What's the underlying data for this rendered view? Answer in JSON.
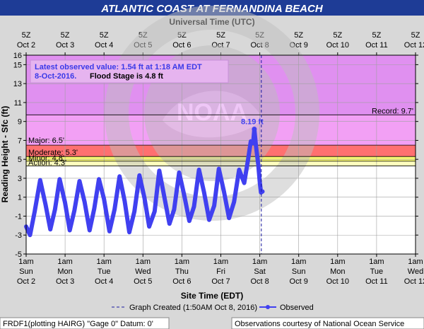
{
  "header": {
    "title": "ATLANTIC COAST AT FERNANDINA BEACH",
    "top_axis_title": "Universal Time (UTC)"
  },
  "info_box": {
    "line1": "Latest observed value: 1.54 ft at 1:18 AM EDT",
    "line2_date": "8-Oct-2016.",
    "line2_flood": "Flood Stage is 4.8 ft"
  },
  "footer": {
    "graph_created": "Graph Created (1:50AM Oct 8, 2016)",
    "observed": "Observed",
    "left": "FRDF1(plotting HAIRG) \"Gage 0\" Datum: 0'",
    "right": "Observations courtesy of National Ocean Service"
  },
  "colors": {
    "record_zone": "#e090f0",
    "major_zone": "#f2a0f5",
    "moderate_zone": "#ff7070",
    "minor_zone": "#f8f870",
    "action_zone": "#ffffbe",
    "series": "#4040f0",
    "title_bar": "#1e3c96",
    "info_text": "#3a3ae8"
  },
  "chart_data": {
    "type": "line",
    "ylabel": "Reading Height - Sfc (ft)",
    "xlabel": "Site Time (EDT)",
    "ylim": [
      -5,
      16
    ],
    "yticks": [
      -5,
      -3,
      -1,
      1,
      3,
      5,
      7,
      9,
      11,
      13,
      15,
      16
    ],
    "grid": true,
    "x_range_days": [
      "Oct 2 1am",
      "Oct 12 1am"
    ],
    "top_ticks": [
      {
        "hour": "5Z",
        "date": "Oct 2"
      },
      {
        "hour": "5Z",
        "date": "Oct 3"
      },
      {
        "hour": "5Z",
        "date": "Oct 4"
      },
      {
        "hour": "5Z",
        "date": "Oct 5"
      },
      {
        "hour": "5Z",
        "date": "Oct 6"
      },
      {
        "hour": "5Z",
        "date": "Oct 7"
      },
      {
        "hour": "5Z",
        "date": "Oct 8"
      },
      {
        "hour": "5Z",
        "date": "Oct 9"
      },
      {
        "hour": "5Z",
        "date": "Oct 10"
      },
      {
        "hour": "5Z",
        "date": "Oct 11"
      },
      {
        "hour": "5Z",
        "date": "Oct 12"
      }
    ],
    "bottom_ticks": [
      {
        "time": "1am",
        "day": "Sun",
        "date": "Oct 2"
      },
      {
        "time": "1am",
        "day": "Mon",
        "date": "Oct 3"
      },
      {
        "time": "1am",
        "day": "Tue",
        "date": "Oct 4"
      },
      {
        "time": "1am",
        "day": "Wed",
        "date": "Oct 5"
      },
      {
        "time": "1am",
        "day": "Thu",
        "date": "Oct 6"
      },
      {
        "time": "1am",
        "day": "Fri",
        "date": "Oct 7"
      },
      {
        "time": "1am",
        "day": "Sat",
        "date": "Oct 8"
      },
      {
        "time": "1am",
        "day": "Sun",
        "date": "Oct 9"
      },
      {
        "time": "1am",
        "day": "Mon",
        "date": "Oct 10"
      },
      {
        "time": "1am",
        "day": "Tue",
        "date": "Oct 11"
      },
      {
        "time": "1am",
        "day": "Wed",
        "date": "Oct 12"
      }
    ],
    "flood_categories": [
      {
        "name": "Record",
        "label": "Record: 9.7'",
        "value": 9.7
      },
      {
        "name": "Major",
        "label": "Major: 6.5'",
        "value": 6.5
      },
      {
        "name": "Moderate",
        "label": "Moderate: 5.3'",
        "value": 5.3
      },
      {
        "name": "Minor",
        "label": "Minor: 4.8'",
        "value": 4.8
      },
      {
        "name": "Action",
        "label": "Action: 4.3'",
        "value": 4.3
      }
    ],
    "peak_annotation": {
      "label": "8.19 ft",
      "value": 8.19,
      "day": 5.86
    },
    "graph_created_day": 6.04,
    "series": [
      {
        "name": "Observed",
        "points_day_ft": [
          [
            0.0,
            -2.1
          ],
          [
            0.1,
            -3.0
          ],
          [
            0.22,
            -0.5
          ],
          [
            0.36,
            2.8
          ],
          [
            0.5,
            0.2
          ],
          [
            0.62,
            -2.4
          ],
          [
            0.74,
            -0.3
          ],
          [
            0.86,
            2.9
          ],
          [
            1.0,
            0.4
          ],
          [
            1.12,
            -2.5
          ],
          [
            1.24,
            -0.4
          ],
          [
            1.37,
            2.7
          ],
          [
            1.5,
            0.5
          ],
          [
            1.63,
            -2.5
          ],
          [
            1.75,
            -0.2
          ],
          [
            1.87,
            2.9
          ],
          [
            2.0,
            0.8
          ],
          [
            2.14,
            -2.6
          ],
          [
            2.27,
            -0.3
          ],
          [
            2.4,
            3.2
          ],
          [
            2.53,
            0.6
          ],
          [
            2.65,
            -2.7
          ],
          [
            2.78,
            -0.5
          ],
          [
            2.91,
            3.3
          ],
          [
            3.04,
            0.9
          ],
          [
            3.16,
            -2.1
          ],
          [
            3.3,
            -0.5
          ],
          [
            3.42,
            3.8
          ],
          [
            3.55,
            1.0
          ],
          [
            3.68,
            -1.8
          ],
          [
            3.8,
            -0.3
          ],
          [
            3.93,
            3.6
          ],
          [
            4.06,
            1.2
          ],
          [
            4.19,
            -1.5
          ],
          [
            4.31,
            0.0
          ],
          [
            4.44,
            3.9
          ],
          [
            4.57,
            1.5
          ],
          [
            4.7,
            -1.4
          ],
          [
            4.83,
            0.1
          ],
          [
            4.95,
            4.0
          ],
          [
            5.08,
            1.6
          ],
          [
            5.21,
            -1.2
          ],
          [
            5.34,
            0.5
          ],
          [
            5.47,
            3.9
          ],
          [
            5.6,
            2.5
          ],
          [
            5.7,
            5.0
          ],
          [
            5.77,
            6.9
          ],
          [
            5.83,
            6.7
          ],
          [
            5.86,
            8.19
          ],
          [
            5.9,
            6.5
          ],
          [
            5.96,
            4.5
          ],
          [
            6.0,
            2.6
          ],
          [
            6.03,
            1.5
          ],
          [
            6.07,
            1.6
          ]
        ]
      }
    ]
  }
}
